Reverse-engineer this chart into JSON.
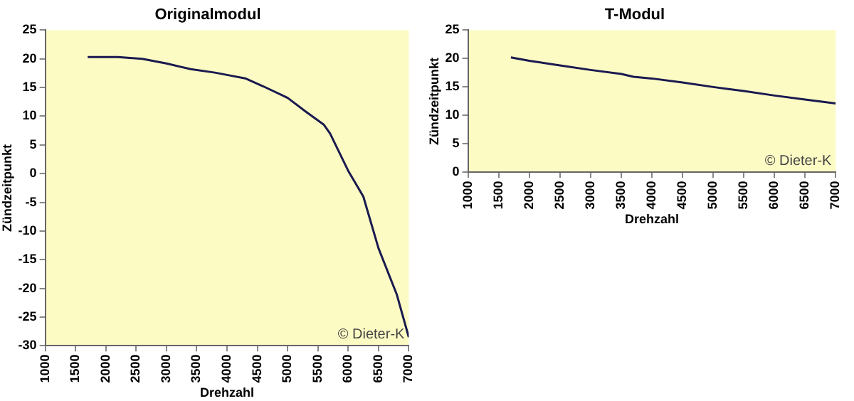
{
  "chart_data": [
    {
      "type": "line",
      "title": "Originalmodul",
      "xlabel": "Drehzahl",
      "ylabel": "Zündzeitpunkt",
      "annotations": [
        "© Dieter-K"
      ],
      "x": [
        1700,
        2200,
        2600,
        3000,
        3400,
        3800,
        4000,
        4300,
        4600,
        5000,
        5300,
        5600,
        5700,
        6000,
        6250,
        6500,
        6800,
        7000
      ],
      "series": [
        {
          "color": "#1a1a50",
          "values": [
            20.3,
            20.3,
            20,
            19.2,
            18.2,
            17.6,
            17.2,
            16.6,
            15.2,
            13.2,
            10.8,
            8.5,
            7,
            0.5,
            -4,
            -13,
            -21,
            -28.5
          ]
        }
      ],
      "xlim": [
        1000,
        7000
      ],
      "xticks": [
        1000,
        1500,
        2000,
        2500,
        3000,
        3500,
        4000,
        4500,
        5000,
        5500,
        6000,
        6500,
        7000
      ],
      "ylim": [
        -30,
        25
      ],
      "yticks": [
        -30,
        -25,
        -20,
        -15,
        -10,
        -5,
        0,
        5,
        10,
        15,
        20,
        25
      ],
      "grid": false,
      "legend": false,
      "marker": "none"
    },
    {
      "type": "line",
      "title": "T-Modul",
      "xlabel": "Drehzahl",
      "ylabel": "Zündzeitpunkt",
      "annotations": [
        "© Dieter-K"
      ],
      "x": [
        1700,
        2000,
        2500,
        3000,
        3500,
        3700,
        4000,
        4500,
        5000,
        5500,
        6000,
        6500,
        7000
      ],
      "series": [
        {
          "color": "#1a1a50",
          "values": [
            20.2,
            19.6,
            18.8,
            18,
            17.3,
            16.8,
            16.5,
            15.8,
            15,
            14.3,
            13.5,
            12.8,
            12.1
          ]
        }
      ],
      "xlim": [
        1000,
        7000
      ],
      "xticks": [
        1000,
        1500,
        2000,
        2500,
        3000,
        3500,
        4000,
        4500,
        5000,
        5500,
        6000,
        6500,
        7000
      ],
      "ylim": [
        0,
        25
      ],
      "yticks": [
        0,
        5,
        10,
        15,
        20,
        25
      ],
      "grid": false,
      "legend": false,
      "marker": "none"
    }
  ]
}
